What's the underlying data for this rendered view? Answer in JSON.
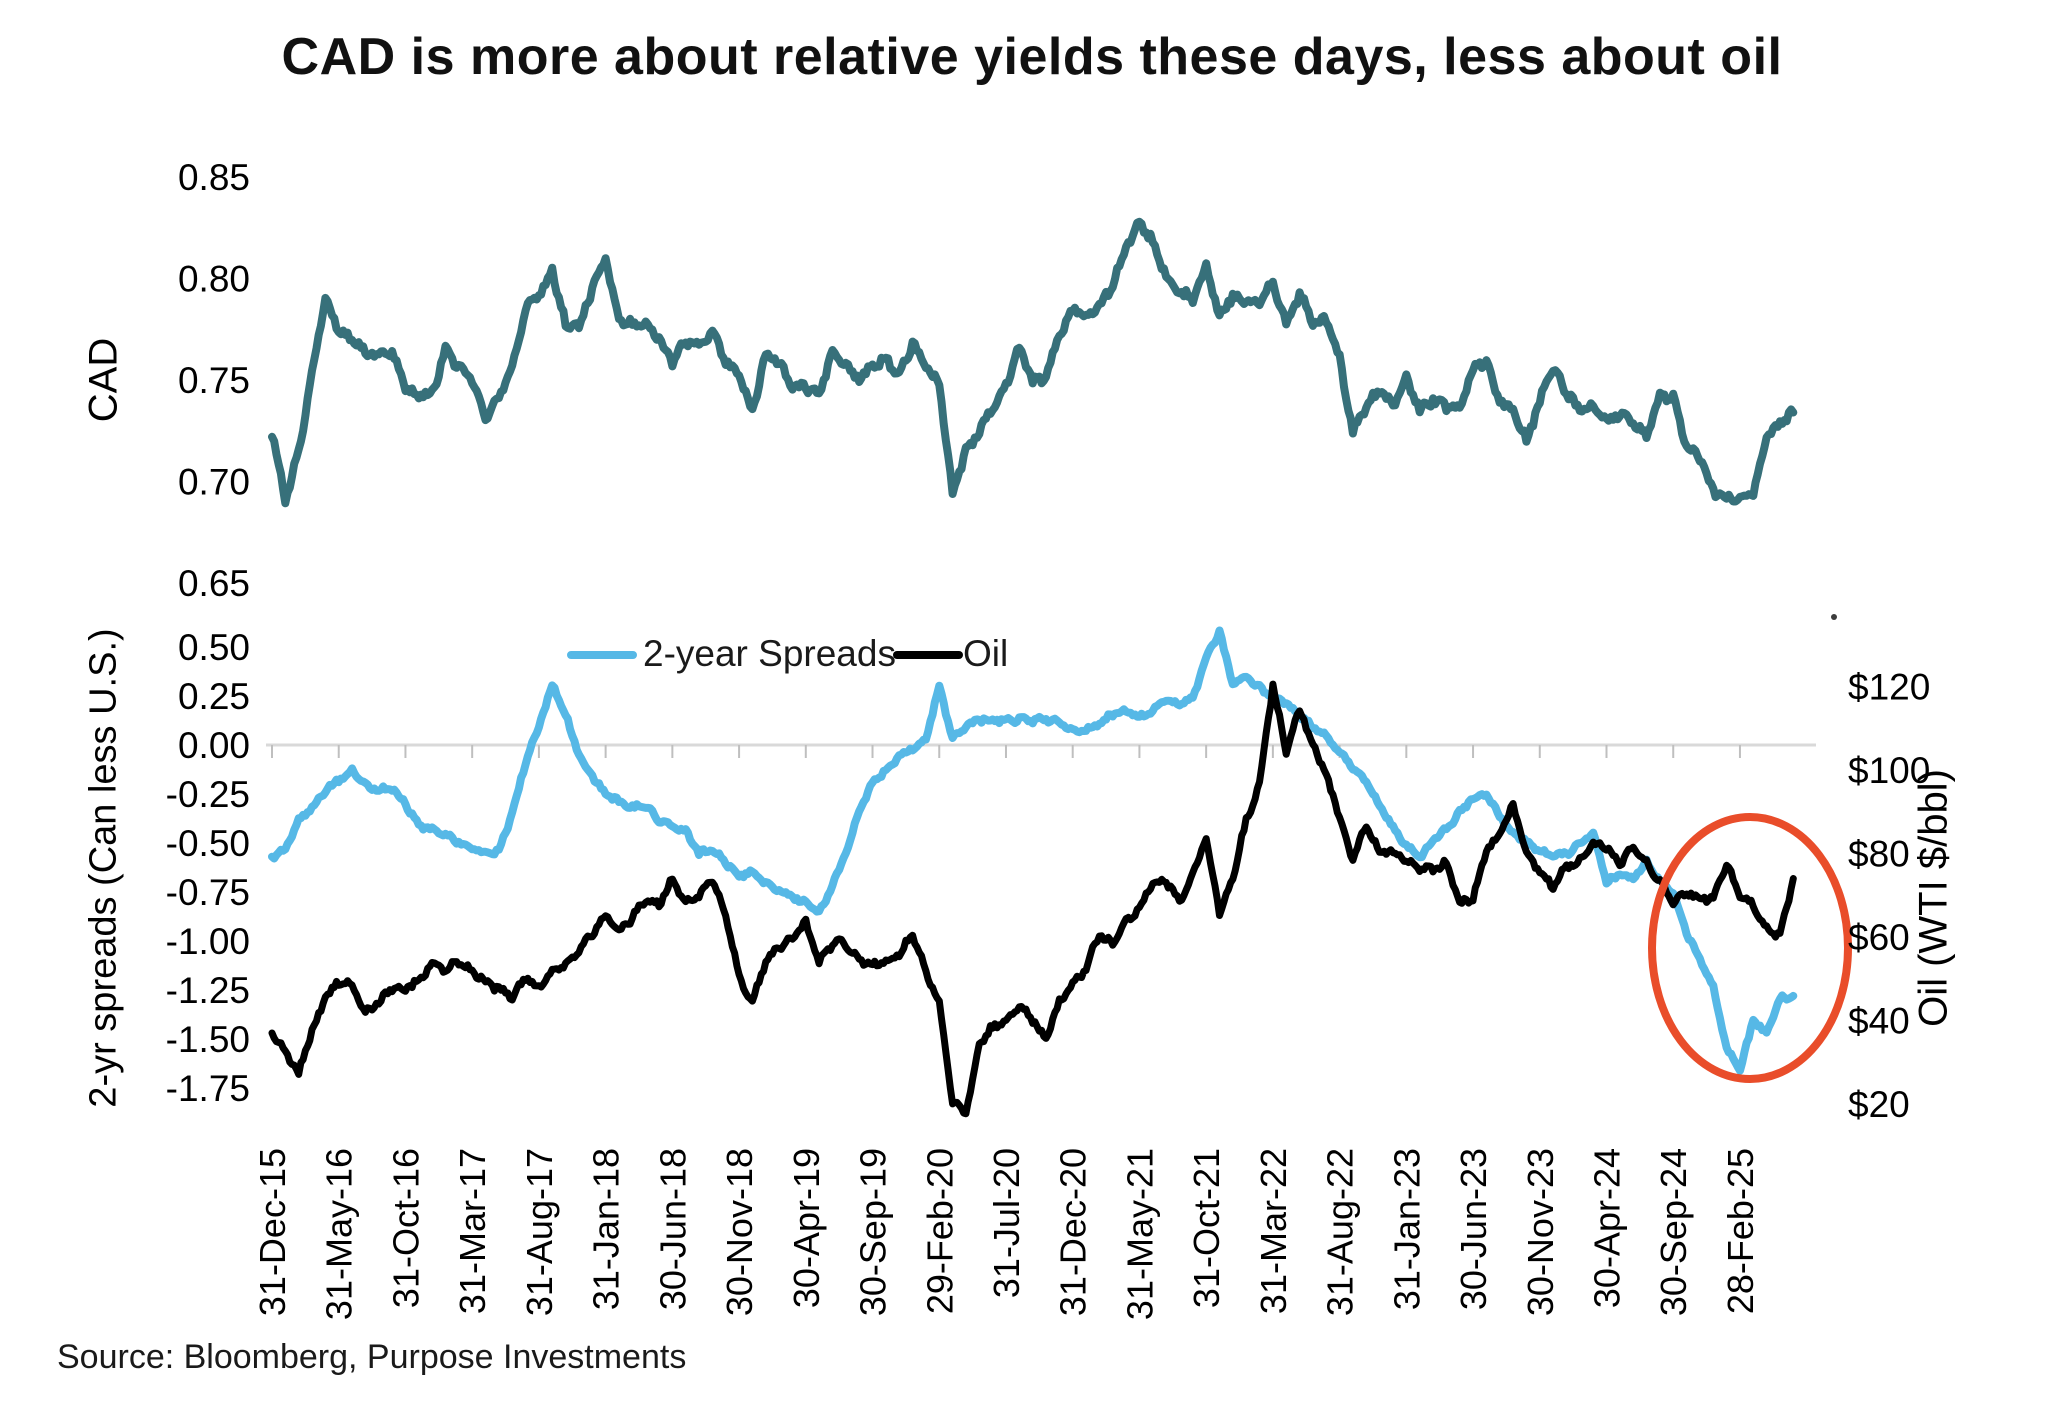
{
  "title": "CAD is more about relative yields these days, less about oil",
  "source": "Source: Bloomberg, Purpose Investments",
  "colors": {
    "cad_line": "#37707A",
    "spreads_line": "#56B8E6",
    "oil_line": "#000000",
    "highlight_ellipse": "#E94D2A",
    "gridline": "#D9D9D9",
    "tick_mark": "#BFBFBF",
    "text": "#000000"
  },
  "legend": [
    {
      "label": "2-year Spreads",
      "color": "#56B8E6"
    },
    {
      "label": "Oil",
      "color": "#000000"
    }
  ],
  "chart_data": {
    "type": "line",
    "x_start": "2015-12",
    "x_freq": "monthly",
    "x_tick_labels": [
      "31-Dec-15",
      "31-May-16",
      "31-Oct-16",
      "31-Mar-17",
      "31-Aug-17",
      "31-Jan-18",
      "30-Jun-18",
      "30-Nov-18",
      "30-Apr-19",
      "30-Sep-19",
      "29-Feb-20",
      "31-Jul-20",
      "31-Dec-20",
      "31-May-21",
      "31-Oct-21",
      "31-Mar-22",
      "31-Aug-22",
      "31-Jan-23",
      "30-Jun-23",
      "30-Nov-23",
      "30-Apr-24",
      "30-Sep-24",
      "28-Feb-25"
    ],
    "x_tick_every_months": 5,
    "panels": [
      {
        "name": "cad",
        "ylabel": "CAD",
        "ylim": [
          0.65,
          0.85
        ],
        "yticks": [
          "0.85",
          "0.80",
          "0.75",
          "0.70",
          "0.65"
        ],
        "grid": false,
        "series": [
          {
            "name": "CAD",
            "color": "#37707A",
            "values": [
              0.722,
              0.691,
              0.716,
              0.755,
              0.79,
              0.772,
              0.772,
              0.765,
              0.763,
              0.762,
              0.746,
              0.744,
              0.744,
              0.763,
              0.755,
              0.75,
              0.733,
              0.741,
              0.754,
              0.785,
              0.793,
              0.805,
              0.776,
              0.775,
              0.795,
              0.812,
              0.78,
              0.776,
              0.778,
              0.772,
              0.76,
              0.768,
              0.766,
              0.774,
              0.761,
              0.752,
              0.733,
              0.762,
              0.76,
              0.749,
              0.746,
              0.74,
              0.764,
              0.759,
              0.751,
              0.755,
              0.759,
              0.753,
              0.77,
              0.756,
              0.746,
              0.694,
              0.717,
              0.725,
              0.736,
              0.746,
              0.767,
              0.751,
              0.751,
              0.77,
              0.785,
              0.783,
              0.787,
              0.796,
              0.814,
              0.829,
              0.82,
              0.802,
              0.792,
              0.789,
              0.808,
              0.783,
              0.791,
              0.787,
              0.789,
              0.8,
              0.778,
              0.791,
              0.777,
              0.781,
              0.762,
              0.724,
              0.734,
              0.746,
              0.738,
              0.751,
              0.734,
              0.739,
              0.738,
              0.737,
              0.755,
              0.758,
              0.739,
              0.737,
              0.721,
              0.738,
              0.755,
              0.745,
              0.737,
              0.738,
              0.727,
              0.733,
              0.731,
              0.723,
              0.741,
              0.74,
              0.718,
              0.714,
              0.695,
              0.69,
              0.692,
              0.695,
              0.723,
              0.727,
              0.734
            ]
          }
        ]
      },
      {
        "name": "spreads-and-oil",
        "left_ylabel": "2-yr spreads (Can less U.S.)",
        "left_ylim": [
          -1.75,
          0.75
        ],
        "left_yticks": [
          "0.50",
          "0.25",
          "0.00",
          "-0.25",
          "-0.50",
          "-0.75",
          "-1.00",
          "-1.25",
          "-1.50",
          "-1.75"
        ],
        "right_ylabel": "Oil (WTI $/bbl)",
        "right_ylim": [
          20,
          140
        ],
        "right_yticks": [
          "$120",
          "$100",
          "$80",
          "$60",
          "$40",
          "$20"
        ],
        "gridline_at_left_value": 0,
        "legend_position": "top-center",
        "series": [
          {
            "name": "2-year Spreads",
            "axis": "left",
            "color": "#56B8E6",
            "values": [
              -0.57,
              -0.52,
              -0.38,
              -0.33,
              -0.24,
              -0.17,
              -0.12,
              -0.21,
              -0.24,
              -0.22,
              -0.29,
              -0.41,
              -0.44,
              -0.46,
              -0.49,
              -0.52,
              -0.56,
              -0.55,
              -0.35,
              -0.08,
              0.1,
              0.3,
              0.15,
              -0.05,
              -0.15,
              -0.25,
              -0.3,
              -0.32,
              -0.3,
              -0.38,
              -0.42,
              -0.45,
              -0.55,
              -0.52,
              -0.6,
              -0.68,
              -0.65,
              -0.7,
              -0.73,
              -0.78,
              -0.82,
              -0.86,
              -0.7,
              -0.55,
              -0.35,
              -0.2,
              -0.12,
              -0.05,
              -0.02,
              0.02,
              0.3,
              0.04,
              0.1,
              0.12,
              0.12,
              0.13,
              0.14,
              0.12,
              0.12,
              0.12,
              0.08,
              0.08,
              0.1,
              0.15,
              0.18,
              0.15,
              0.18,
              0.22,
              0.2,
              0.25,
              0.45,
              0.57,
              0.3,
              0.35,
              0.3,
              0.25,
              0.2,
              0.15,
              0.1,
              0.05,
              -0.05,
              -0.12,
              -0.18,
              -0.3,
              -0.42,
              -0.52,
              -0.58,
              -0.48,
              -0.42,
              -0.35,
              -0.28,
              -0.25,
              -0.35,
              -0.45,
              -0.5,
              -0.55,
              -0.55,
              -0.55,
              -0.5,
              -0.46,
              -0.7,
              -0.65,
              -0.68,
              -0.6,
              -0.7,
              -0.75,
              -0.95,
              -1.1,
              -1.25,
              -1.55,
              -1.65,
              -1.4,
              -1.48,
              -1.3,
              -1.28
            ]
          },
          {
            "name": "Oil",
            "axis": "right",
            "color": "#000000",
            "values": [
              37,
              32,
              27,
              38,
              46,
              49,
              48,
              42,
              45,
              48,
              47,
              49,
              54,
              53,
              54,
              51,
              49,
              48,
              46,
              50,
              47,
              52,
              54,
              57,
              60,
              65,
              62,
              65,
              69,
              67,
              74,
              69,
              70,
              73,
              65,
              51,
              45,
              54,
              57,
              60,
              64,
              54,
              58,
              58,
              55,
              54,
              54,
              55,
              61,
              52,
              45,
              20,
              17,
              35,
              39,
              40,
              43,
              40,
              36,
              45,
              48,
              52,
              61,
              59,
              64,
              66,
              73,
              74,
              69,
              75,
              83,
              66,
              75,
              88,
              96,
              120,
              105,
              115,
              106,
              98,
              89,
              79,
              87,
              80,
              80,
              79,
              77,
              76,
              77,
              68,
              70,
              81,
              84,
              91,
              81,
              76,
              72,
              76,
              78,
              83,
              82,
              77,
              81,
              78,
              74,
              68,
              70,
              69,
              70,
              78,
              70,
              67,
              62,
              61,
              74
            ]
          }
        ],
        "annotations": [
          {
            "shape": "ellipse",
            "color": "#E94D2A",
            "covers_x_from": "2024-07",
            "covers_x_to": "2025-06"
          },
          {
            "shape": "dot",
            "color": "#3C3C3C"
          }
        ]
      }
    ]
  }
}
